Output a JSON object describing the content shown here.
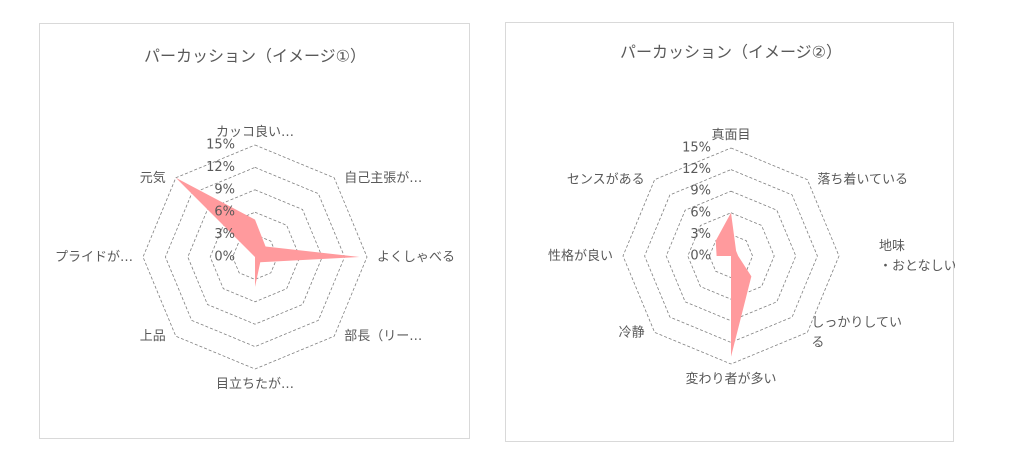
{
  "colors": {
    "series_fill": "#ff9a9d",
    "grid": "#808080",
    "text": "#595959"
  },
  "chart_data": [
    {
      "type": "radar",
      "title": "パーカッション（イメージ①）",
      "categories": [
        [
          "カッコ良い…"
        ],
        [
          "自己主張が…"
        ],
        [
          "よくしゃべる"
        ],
        [
          "部長（リー…"
        ],
        [
          "目立ちたが…"
        ],
        [
          "上品"
        ],
        [
          "プライドが…"
        ],
        [
          "元気"
        ]
      ],
      "values": [
        5,
        2,
        14,
        1,
        4,
        0,
        0,
        15
      ],
      "ticks": [
        "0%",
        "3%",
        "6%",
        "9%",
        "12%",
        "15%"
      ],
      "rlim": [
        0,
        15
      ],
      "grid": true
    },
    {
      "type": "radar",
      "title": "パーカッション（イメージ②）",
      "categories": [
        [
          "真面目"
        ],
        [
          "落ち着いている"
        ],
        [
          "地味",
          "・おとなしい"
        ],
        [
          "しっかりしてい",
          "る"
        ],
        [
          "変わり者が多い"
        ],
        [
          "冷静"
        ],
        [
          "性格が良い"
        ],
        [
          "センスがある"
        ]
      ],
      "values": [
        6,
        1,
        1,
        4,
        14,
        0,
        2,
        3
      ],
      "ticks": [
        "0%",
        "3%",
        "6%",
        "9%",
        "12%",
        "15%"
      ],
      "rlim": [
        0,
        15
      ],
      "grid": true
    }
  ]
}
